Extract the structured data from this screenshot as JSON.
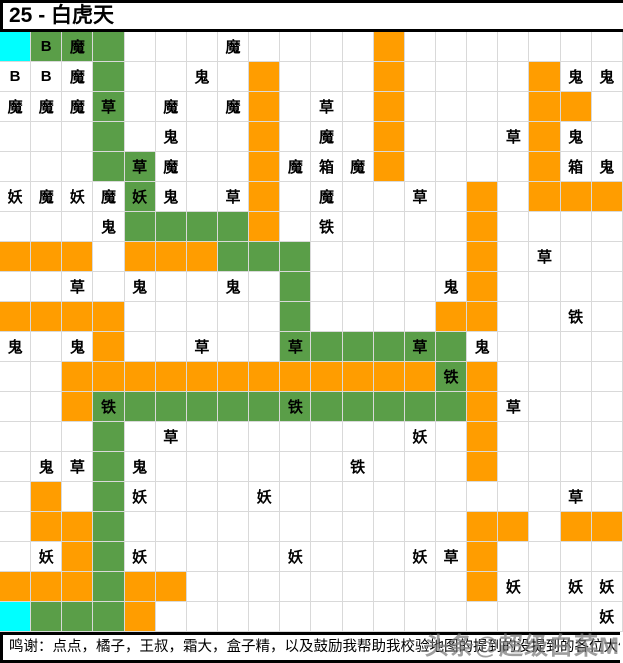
{
  "title": "25 - 白虎天",
  "footer": {
    "credits": "鸣谢：点点，橘子，王叔，霜大，盒子精，以及鼓励我帮助我校验地图的提到的没提到的各位大佬"
  },
  "watermark": "头条@超级白菜M",
  "colors": {
    "orange": "#ff9d00",
    "green": "#5a9e48",
    "cyan": "#00ffff",
    "gridline": "#d9d9d9",
    "text": "#000000"
  },
  "grid": {
    "rows": 20,
    "cols": 20,
    "bg_codes": {
      "w": "white",
      "o": "orange",
      "g": "green",
      "c": "cyan"
    },
    "row_bg": [
      "cgggwwwwwwwwowwwwwww",
      "wwwgwwwwowwwowwwwoww",
      "wwwgwwwwowwwowwwwoow",
      "wwwgwwwwowwwowwwwoww",
      "wwwggwwwowwwowwwwoww",
      "wwwwgwwwowwwwwwowooo",
      "wwwwggggowwwwwwowwww",
      "ooowooogggwwwwwowwww",
      "wwwwwwwwwgwwwwwowwww",
      "oooowwwwwgwwwwoowwww",
      "wwwowwwwwggggggwwwww",
      "wwoooooooooooogowwww",
      "wwoggggggggggggowwww",
      "wwwgwwwwwwwwwwwowwww",
      "wwwgwwwwwwwwwwwowwww",
      "wowgwwwwwwwwwwwwwwww",
      "woogwwwwwwwwwwwoowoo",
      "wwogwwwwwwwwwwwowwww",
      "ooogoowwwwwwwwwowwww",
      "cgggowwwwwwwwwwwwwww"
    ],
    "labels": [
      {
        "r": 0,
        "c": 1,
        "t": "B"
      },
      {
        "r": 0,
        "c": 2,
        "t": "魔"
      },
      {
        "r": 0,
        "c": 7,
        "t": "魔"
      },
      {
        "r": 1,
        "c": 0,
        "t": "B"
      },
      {
        "r": 1,
        "c": 1,
        "t": "B"
      },
      {
        "r": 1,
        "c": 2,
        "t": "魔"
      },
      {
        "r": 1,
        "c": 6,
        "t": "鬼"
      },
      {
        "r": 1,
        "c": 18,
        "t": "鬼"
      },
      {
        "r": 1,
        "c": 19,
        "t": "鬼"
      },
      {
        "r": 2,
        "c": 0,
        "t": "魔"
      },
      {
        "r": 2,
        "c": 1,
        "t": "魔"
      },
      {
        "r": 2,
        "c": 2,
        "t": "魔"
      },
      {
        "r": 2,
        "c": 3,
        "t": "草"
      },
      {
        "r": 2,
        "c": 5,
        "t": "魔"
      },
      {
        "r": 2,
        "c": 7,
        "t": "魔"
      },
      {
        "r": 2,
        "c": 10,
        "t": "草"
      },
      {
        "r": 3,
        "c": 5,
        "t": "鬼"
      },
      {
        "r": 3,
        "c": 10,
        "t": "魔"
      },
      {
        "r": 3,
        "c": 16,
        "t": "草"
      },
      {
        "r": 3,
        "c": 18,
        "t": "鬼"
      },
      {
        "r": 4,
        "c": 4,
        "t": "草"
      },
      {
        "r": 4,
        "c": 5,
        "t": "魔"
      },
      {
        "r": 4,
        "c": 9,
        "t": "魔"
      },
      {
        "r": 4,
        "c": 10,
        "t": "箱"
      },
      {
        "r": 4,
        "c": 11,
        "t": "魔"
      },
      {
        "r": 4,
        "c": 18,
        "t": "箱"
      },
      {
        "r": 4,
        "c": 19,
        "t": "鬼"
      },
      {
        "r": 5,
        "c": 0,
        "t": "妖"
      },
      {
        "r": 5,
        "c": 1,
        "t": "魔"
      },
      {
        "r": 5,
        "c": 2,
        "t": "妖"
      },
      {
        "r": 5,
        "c": 3,
        "t": "魔"
      },
      {
        "r": 5,
        "c": 4,
        "t": "妖"
      },
      {
        "r": 5,
        "c": 5,
        "t": "鬼"
      },
      {
        "r": 5,
        "c": 7,
        "t": "草"
      },
      {
        "r": 5,
        "c": 10,
        "t": "魔"
      },
      {
        "r": 5,
        "c": 13,
        "t": "草"
      },
      {
        "r": 6,
        "c": 3,
        "t": "鬼"
      },
      {
        "r": 6,
        "c": 10,
        "t": "铁"
      },
      {
        "r": 7,
        "c": 17,
        "t": "草"
      },
      {
        "r": 8,
        "c": 2,
        "t": "草"
      },
      {
        "r": 8,
        "c": 4,
        "t": "鬼"
      },
      {
        "r": 8,
        "c": 7,
        "t": "鬼"
      },
      {
        "r": 8,
        "c": 14,
        "t": "鬼"
      },
      {
        "r": 9,
        "c": 18,
        "t": "铁"
      },
      {
        "r": 10,
        "c": 0,
        "t": "鬼"
      },
      {
        "r": 10,
        "c": 2,
        "t": "鬼"
      },
      {
        "r": 10,
        "c": 6,
        "t": "草"
      },
      {
        "r": 10,
        "c": 9,
        "t": "草"
      },
      {
        "r": 10,
        "c": 13,
        "t": "草"
      },
      {
        "r": 10,
        "c": 15,
        "t": "鬼"
      },
      {
        "r": 11,
        "c": 14,
        "t": "铁"
      },
      {
        "r": 12,
        "c": 3,
        "t": "铁"
      },
      {
        "r": 12,
        "c": 9,
        "t": "铁"
      },
      {
        "r": 12,
        "c": 16,
        "t": "草"
      },
      {
        "r": 13,
        "c": 5,
        "t": "草"
      },
      {
        "r": 13,
        "c": 13,
        "t": "妖"
      },
      {
        "r": 14,
        "c": 1,
        "t": "鬼"
      },
      {
        "r": 14,
        "c": 2,
        "t": "草"
      },
      {
        "r": 14,
        "c": 4,
        "t": "鬼"
      },
      {
        "r": 14,
        "c": 11,
        "t": "铁"
      },
      {
        "r": 15,
        "c": 4,
        "t": "妖"
      },
      {
        "r": 15,
        "c": 8,
        "t": "妖"
      },
      {
        "r": 15,
        "c": 18,
        "t": "草"
      },
      {
        "r": 17,
        "c": 1,
        "t": "妖"
      },
      {
        "r": 17,
        "c": 4,
        "t": "妖"
      },
      {
        "r": 17,
        "c": 9,
        "t": "妖"
      },
      {
        "r": 17,
        "c": 13,
        "t": "妖"
      },
      {
        "r": 17,
        "c": 14,
        "t": "草"
      },
      {
        "r": 18,
        "c": 16,
        "t": "妖"
      },
      {
        "r": 18,
        "c": 18,
        "t": "妖"
      },
      {
        "r": 18,
        "c": 19,
        "t": "妖"
      },
      {
        "r": 19,
        "c": 19,
        "t": "妖"
      }
    ]
  }
}
